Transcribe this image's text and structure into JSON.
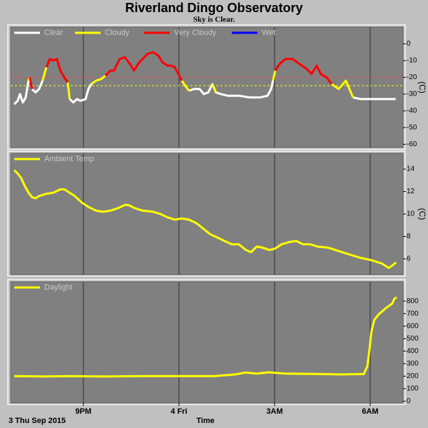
{
  "title": "Riverland Dingo Observatory",
  "subtitle": "Sky is Clear.",
  "date": "3 Thu Sep 2015",
  "chart_data": [
    {
      "type": "line",
      "ylabel": "(C)",
      "x": [
        18.83,
        18.94,
        19.01,
        19.1,
        19.19,
        19.28,
        19.32,
        19.39,
        19.5,
        19.61,
        19.72,
        19.84,
        19.95,
        20.06,
        20.17,
        20.28,
        20.4,
        20.51,
        20.57,
        20.69,
        20.8,
        20.91,
        21.07,
        21.16,
        21.25,
        21.4,
        21.56,
        21.69,
        21.85,
        21.96,
        22.14,
        22.3,
        22.46,
        22.59,
        22.75,
        22.86,
        23.01,
        23.19,
        23.35,
        23.48,
        23.64,
        23.75,
        23.87,
        23.98,
        24.09,
        24.2,
        24.31,
        24.47,
        24.65,
        24.78,
        24.92,
        25.05,
        25.16,
        25.32,
        25.54,
        25.88,
        26.22,
        26.55,
        26.78,
        26.89,
        26.95,
        27.02,
        27.16,
        27.34,
        27.56,
        27.78,
        28.01,
        28.16,
        28.32,
        28.45,
        28.63,
        28.79,
        29.01,
        29.24,
        29.35,
        29.46,
        29.69,
        30.02,
        30.47,
        30.8
      ],
      "series": [
        {
          "name": "Clear",
          "color": "#ffffff",
          "values": [
            -36,
            -34,
            -30,
            -35,
            -32,
            -22,
            null,
            -27,
            -29,
            -27,
            -22,
            null,
            null,
            null,
            null,
            null,
            null,
            null,
            -33,
            -35,
            -33,
            -34,
            -33,
            -27,
            -24,
            null,
            null,
            null,
            null,
            null,
            null,
            null,
            null,
            null,
            null,
            null,
            null,
            null,
            null,
            null,
            null,
            null,
            null,
            null,
            null,
            null,
            -28,
            -27,
            -27,
            -30,
            -29,
            -24,
            -29,
            -30,
            -31,
            -31,
            -32,
            -32,
            -31,
            -27,
            -22,
            null,
            null,
            null,
            null,
            null,
            null,
            null,
            null,
            null,
            null,
            null,
            null,
            null,
            null,
            -32,
            -33,
            -33,
            -33,
            -33
          ]
        },
        {
          "name": "Cloudy",
          "color": "#ffff00",
          "values": [
            null,
            null,
            null,
            null,
            null,
            -22,
            -20,
            null,
            null,
            null,
            -22,
            -14,
            null,
            null,
            null,
            null,
            null,
            -23,
            -33,
            null,
            null,
            null,
            null,
            null,
            -24,
            -22,
            -21,
            -19,
            null,
            null,
            null,
            null,
            null,
            null,
            null,
            null,
            null,
            null,
            null,
            null,
            null,
            null,
            null,
            null,
            -22,
            -25,
            -28,
            null,
            null,
            null,
            null,
            -24,
            -29,
            null,
            null,
            null,
            null,
            null,
            null,
            null,
            -22,
            -16,
            null,
            null,
            null,
            null,
            null,
            null,
            null,
            null,
            null,
            -24,
            -27,
            -22,
            -27,
            -32,
            null,
            null,
            null,
            null
          ]
        },
        {
          "name": "Very Cloudy",
          "color": "#ff0000",
          "values": [
            null,
            null,
            null,
            null,
            null,
            null,
            -20,
            -27,
            null,
            null,
            null,
            -14,
            -9,
            -10,
            -9,
            -16,
            -20,
            -23,
            null,
            null,
            null,
            null,
            null,
            null,
            null,
            null,
            null,
            -19,
            -16,
            -16,
            -9,
            -8,
            -12,
            -16,
            -11,
            -9,
            -6,
            -5,
            -7,
            -11,
            -13,
            -13,
            -14,
            -18,
            -22,
            null,
            null,
            null,
            null,
            null,
            null,
            null,
            null,
            null,
            null,
            null,
            null,
            null,
            null,
            null,
            null,
            -16,
            -12,
            -9,
            -9,
            -12,
            -15,
            -18,
            -13,
            -18,
            -20,
            -24,
            null,
            null,
            null,
            null,
            null,
            null,
            null,
            null
          ]
        },
        {
          "name": "Wet",
          "color": "#0000ff",
          "values": [
            null,
            null,
            null,
            null,
            null,
            null,
            null,
            null,
            null,
            null,
            null,
            null,
            null,
            null,
            null,
            null,
            null,
            null,
            null,
            null,
            null,
            null,
            null,
            null,
            null,
            null,
            null,
            null,
            null,
            null,
            null,
            null,
            null,
            null,
            null,
            null,
            null,
            null,
            null,
            null,
            null,
            null,
            null,
            null,
            null,
            null,
            null,
            null,
            null,
            null,
            null,
            null,
            null,
            null,
            null,
            null,
            null,
            null,
            null,
            null,
            null,
            null,
            null,
            null,
            null,
            null,
            null,
            null,
            null,
            null,
            null,
            null,
            null,
            null,
            null,
            null,
            null,
            null,
            null,
            null
          ]
        }
      ],
      "thresholds": [
        {
          "value": -20,
          "color": "#ff4040"
        },
        {
          "value": -25,
          "color": "#ffff00"
        }
      ],
      "xlim": [
        18.72,
        31.03
      ],
      "xticks": [
        {
          "value": 21,
          "label": "9PM"
        },
        {
          "value": 24,
          "label": "4 Fri"
        },
        {
          "value": 27,
          "label": "3AM"
        },
        {
          "value": 30,
          "label": "6AM"
        }
      ],
      "ylim": [
        -62,
        10
      ],
      "yticks": [
        0,
        -10,
        -20,
        -30,
        -40,
        -50,
        -60
      ],
      "grid": "x"
    },
    {
      "type": "line",
      "ylabel": "(C)",
      "x": [
        18.83,
        18.94,
        19.05,
        19.16,
        19.28,
        19.39,
        19.5,
        19.61,
        19.84,
        20.06,
        20.28,
        20.4,
        20.51,
        20.73,
        20.96,
        21.18,
        21.4,
        21.63,
        21.85,
        22.07,
        22.3,
        22.41,
        22.63,
        22.86,
        23.19,
        23.42,
        23.64,
        23.87,
        24.09,
        24.31,
        24.54,
        24.76,
        24.98,
        25.21,
        25.43,
        25.66,
        25.88,
        26.1,
        26.26,
        26.44,
        26.62,
        26.84,
        27.0,
        27.22,
        27.45,
        27.67,
        27.9,
        28.12,
        28.34,
        28.68,
        29.01,
        29.35,
        29.69,
        30.02,
        30.36,
        30.58,
        30.69,
        30.81
      ],
      "series": [
        {
          "name": "Ambient Temp",
          "color": "#ffff00",
          "values": [
            13.9,
            13.6,
            13.2,
            12.5,
            11.9,
            11.5,
            11.4,
            11.6,
            11.8,
            11.9,
            12.2,
            12.2,
            12.0,
            11.6,
            11.0,
            10.6,
            10.3,
            10.2,
            10.3,
            10.5,
            10.8,
            10.8,
            10.5,
            10.3,
            10.2,
            10.0,
            9.7,
            9.5,
            9.6,
            9.5,
            9.2,
            8.7,
            8.2,
            7.9,
            7.6,
            7.3,
            7.3,
            6.8,
            6.6,
            7.1,
            7.0,
            6.8,
            6.9,
            7.3,
            7.5,
            7.6,
            7.3,
            7.3,
            7.1,
            7.0,
            6.7,
            6.4,
            6.1,
            5.9,
            5.6,
            5.2,
            5.4,
            5.7
          ]
        }
      ],
      "xlim": [
        18.72,
        31.03
      ],
      "xticks": [
        {
          "value": 21,
          "label": "9PM"
        },
        {
          "value": 24,
          "label": "4 Fri"
        },
        {
          "value": 27,
          "label": "3AM"
        },
        {
          "value": 30,
          "label": "6AM"
        }
      ],
      "ylim": [
        4.6,
        15.4
      ],
      "yticks": [
        6,
        8,
        10,
        12,
        14
      ],
      "grid": "x"
    },
    {
      "type": "line",
      "xlabel": "Time",
      "x": [
        18.83,
        19.72,
        20.62,
        21.74,
        22.86,
        23.98,
        25.1,
        25.77,
        26.1,
        26.44,
        26.82,
        27.34,
        28.23,
        29.13,
        29.8,
        29.91,
        29.98,
        30.04,
        30.13,
        30.25,
        30.47,
        30.69,
        30.76,
        30.83
      ],
      "series": [
        {
          "name": "Daylight",
          "color": "#ffff00",
          "values": [
            200,
            197,
            200,
            197,
            200,
            200,
            200,
            214,
            229,
            220,
            231,
            220,
            217,
            214,
            217,
            280,
            420,
            560,
            650,
            690,
            740,
            780,
            820,
            830
          ]
        }
      ],
      "xlim": [
        18.72,
        31.03
      ],
      "xticks": [
        {
          "value": 21,
          "label": "9PM"
        },
        {
          "value": 24,
          "label": "4 Fri"
        },
        {
          "value": 27,
          "label": "3AM"
        },
        {
          "value": 30,
          "label": "6AM"
        }
      ],
      "ylim": [
        -15,
        955
      ],
      "yticks": [
        0,
        100,
        200,
        300,
        400,
        500,
        600,
        700,
        800
      ],
      "grid": "x"
    }
  ]
}
